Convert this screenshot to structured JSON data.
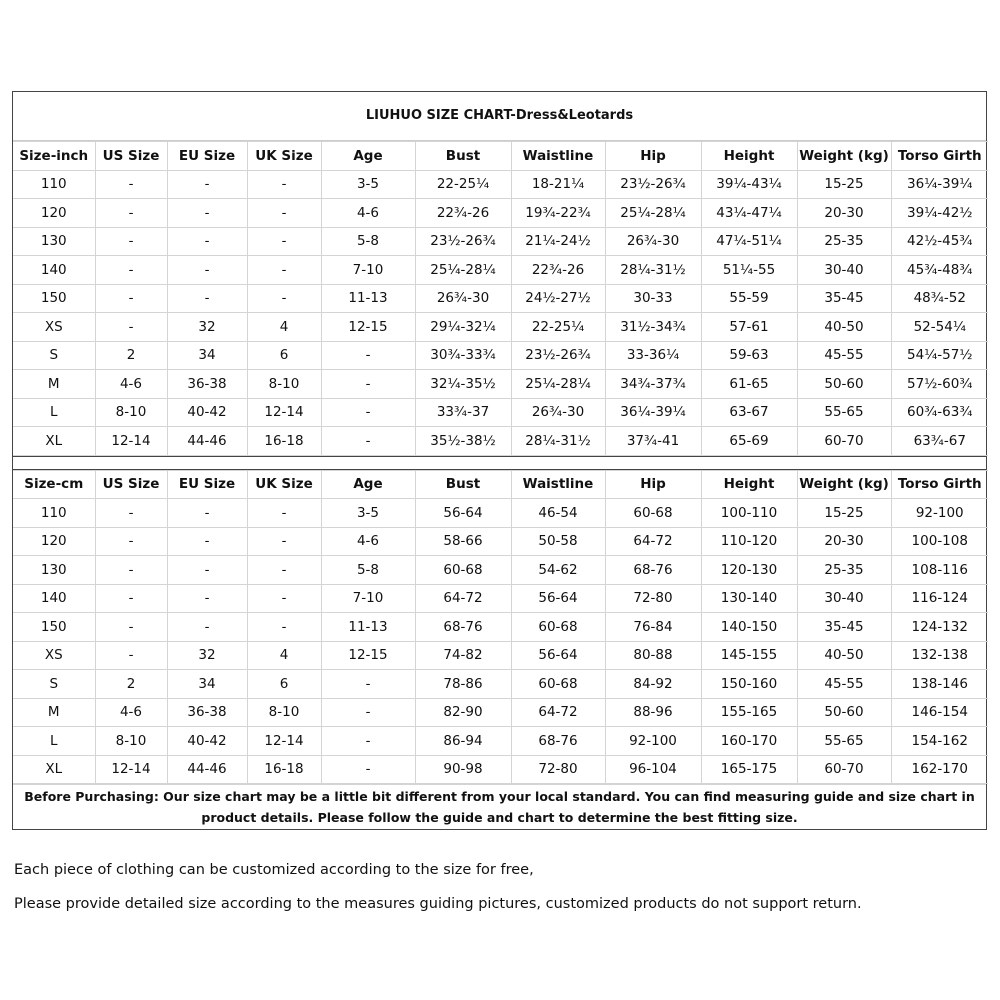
{
  "title": "LIUHUO SIZE CHART-Dress&Leotards",
  "inch_table": {
    "headers": [
      "Size-inch",
      "US Size",
      "EU Size",
      "UK Size",
      "Age",
      "Bust",
      "Waistline",
      "Hip",
      "Height",
      "Weight (kg)",
      "Torso Girth"
    ],
    "rows": [
      [
        "110",
        "-",
        "-",
        "-",
        "3-5",
        "22-25¼",
        "18-21¼",
        "23½-26¾",
        "39¼-43¼",
        "15-25",
        "36¼-39¼"
      ],
      [
        "120",
        "-",
        "-",
        "-",
        "4-6",
        "22¾-26",
        "19¾-22¾",
        "25¼-28¼",
        "43¼-47¼",
        "20-30",
        "39¼-42½"
      ],
      [
        "130",
        "-",
        "-",
        "-",
        "5-8",
        "23½-26¾",
        "21¼-24½",
        "26¾-30",
        "47¼-51¼",
        "25-35",
        "42½-45¾"
      ],
      [
        "140",
        "-",
        "-",
        "-",
        "7-10",
        "25¼-28¼",
        "22¾-26",
        "28¼-31½",
        "51¼-55",
        "30-40",
        "45¾-48¾"
      ],
      [
        "150",
        "-",
        "-",
        "-",
        "11-13",
        "26¾-30",
        "24½-27½",
        "30-33",
        "55-59",
        "35-45",
        "48¾-52"
      ],
      [
        "XS",
        "-",
        "32",
        "4",
        "12-15",
        "29¼-32¼",
        "22-25¼",
        "31½-34¾",
        "57-61",
        "40-50",
        "52-54¼"
      ],
      [
        "S",
        "2",
        "34",
        "6",
        "-",
        "30¾-33¾",
        "23½-26¾",
        "33-36¼",
        "59-63",
        "45-55",
        "54¼-57½"
      ],
      [
        "M",
        "4-6",
        "36-38",
        "8-10",
        "-",
        "32¼-35½",
        "25¼-28¼",
        "34¾-37¾",
        "61-65",
        "50-60",
        "57½-60¾"
      ],
      [
        "L",
        "8-10",
        "40-42",
        "12-14",
        "-",
        "33¾-37",
        "26¾-30",
        "36¼-39¼",
        "63-67",
        "55-65",
        "60¾-63¾"
      ],
      [
        "XL",
        "12-14",
        "44-46",
        "16-18",
        "-",
        "35½-38½",
        "28¼-31½",
        "37¾-41",
        "65-69",
        "60-70",
        "63¾-67"
      ]
    ]
  },
  "cm_table": {
    "headers": [
      "Size-cm",
      "US Size",
      "EU Size",
      "UK Size",
      "Age",
      "Bust",
      "Waistline",
      "Hip",
      "Height",
      "Weight (kg)",
      "Torso Girth"
    ],
    "rows": [
      [
        "110",
        "-",
        "-",
        "-",
        "3-5",
        "56-64",
        "46-54",
        "60-68",
        "100-110",
        "15-25",
        "92-100"
      ],
      [
        "120",
        "-",
        "-",
        "-",
        "4-6",
        "58-66",
        "50-58",
        "64-72",
        "110-120",
        "20-30",
        "100-108"
      ],
      [
        "130",
        "-",
        "-",
        "-",
        "5-8",
        "60-68",
        "54-62",
        "68-76",
        "120-130",
        "25-35",
        "108-116"
      ],
      [
        "140",
        "-",
        "-",
        "-",
        "7-10",
        "64-72",
        "56-64",
        "72-80",
        "130-140",
        "30-40",
        "116-124"
      ],
      [
        "150",
        "-",
        "-",
        "-",
        "11-13",
        "68-76",
        "60-68",
        "76-84",
        "140-150",
        "35-45",
        "124-132"
      ],
      [
        "XS",
        "-",
        "32",
        "4",
        "12-15",
        "74-82",
        "56-64",
        "80-88",
        "145-155",
        "40-50",
        "132-138"
      ],
      [
        "S",
        "2",
        "34",
        "6",
        "-",
        "78-86",
        "60-68",
        "84-92",
        "150-160",
        "45-55",
        "138-146"
      ],
      [
        "M",
        "4-6",
        "36-38",
        "8-10",
        "-",
        "82-90",
        "64-72",
        "88-96",
        "155-165",
        "50-60",
        "146-154"
      ],
      [
        "L",
        "8-10",
        "40-42",
        "12-14",
        "-",
        "86-94",
        "68-76",
        "92-100",
        "160-170",
        "55-65",
        "154-162"
      ],
      [
        "XL",
        "12-14",
        "44-46",
        "16-18",
        "-",
        "90-98",
        "72-80",
        "96-104",
        "165-175",
        "60-70",
        "162-170"
      ]
    ]
  },
  "note": "Before Purchasing: Our size chart may be a little bit different from your local standard. You can find measuring guide and size chart in product details. Please follow the guide and chart to determine the best fitting size.",
  "footer": {
    "line1": "Each piece of clothing can be customized according to the size for free,",
    "line2": "Please provide detailed size according to the measures guiding pictures, customized products do not support return."
  }
}
